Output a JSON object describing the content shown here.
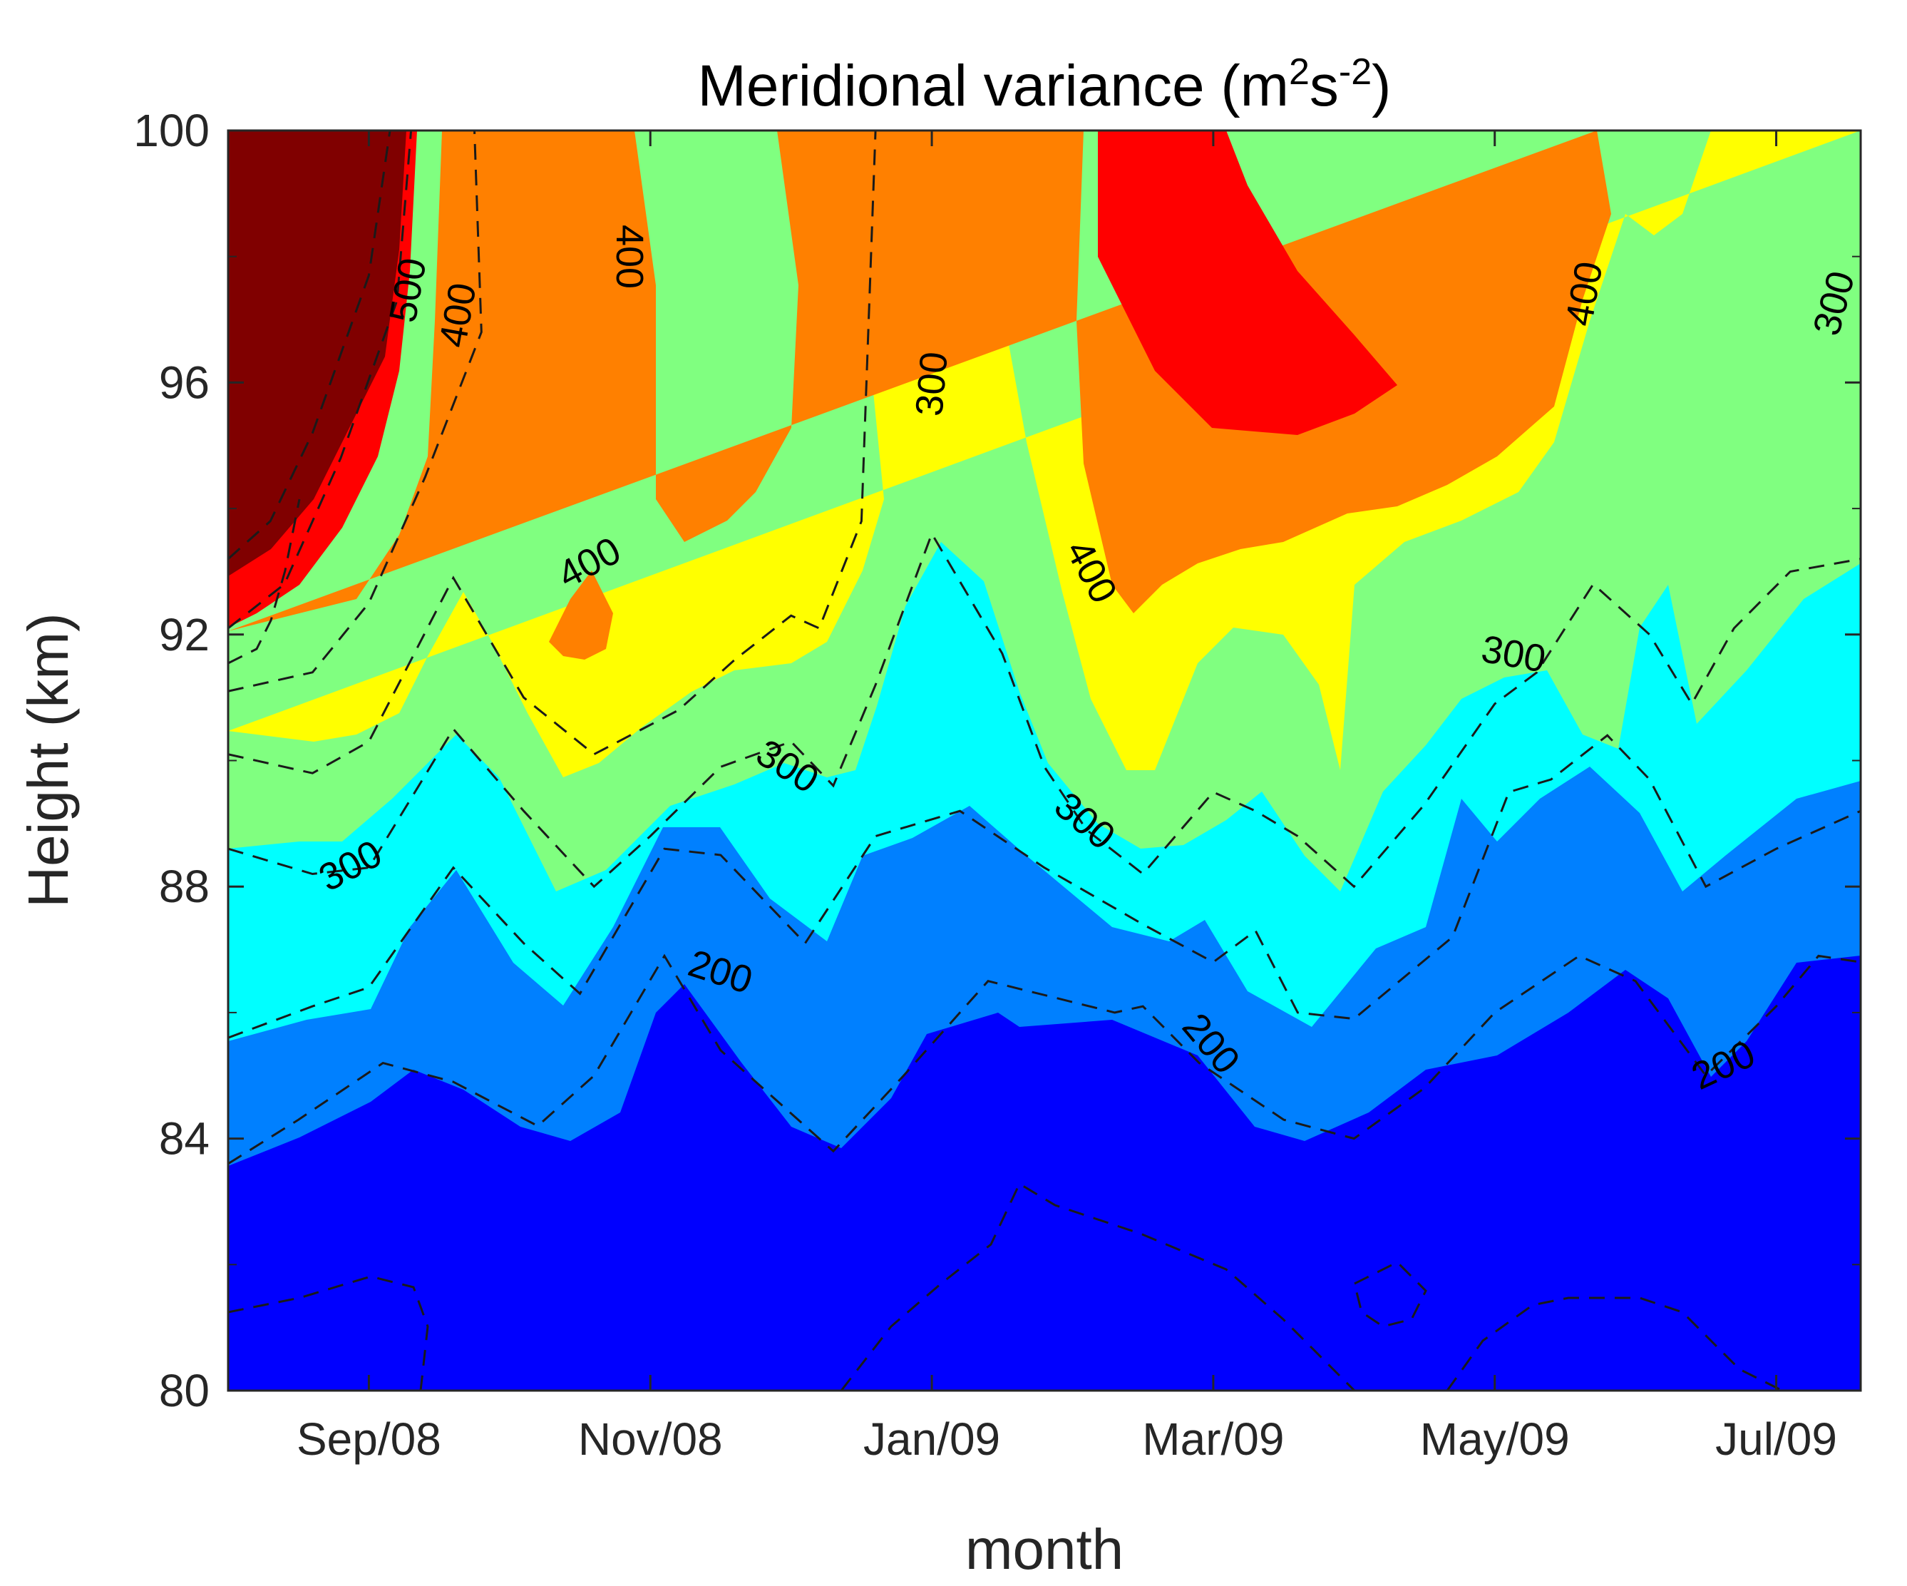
{
  "chart_data": {
    "type": "contourf",
    "title": {
      "prefix": "Meridional variance (m",
      "sup1": "2",
      "mid": "s",
      "sup2": "-2",
      "suffix": ")"
    },
    "xlabel": "month",
    "ylabel": "Height (km)",
    "xlim": [
      0,
      11.6
    ],
    "ylim": [
      80,
      100
    ],
    "yticks": [
      80,
      84,
      88,
      92,
      96,
      100
    ],
    "xticks": [
      {
        "label": "Sep/08",
        "x": 1.0
      },
      {
        "label": "Nov/08",
        "x": 3.0
      },
      {
        "label": "Jan/09",
        "x": 5.0
      },
      {
        "label": "Mar/09",
        "x": 7.0
      },
      {
        "label": "May/09",
        "x": 9.0
      },
      {
        "label": "Jul/09",
        "x": 11.0
      }
    ],
    "levels": [
      {
        "min": 0,
        "max": 200,
        "color": "#0000FF"
      },
      {
        "min": 200,
        "max": 250,
        "color": "#0080FF"
      },
      {
        "min": 250,
        "max": 300,
        "color": "#00FFFF"
      },
      {
        "min": 300,
        "max": 350,
        "color": "#80FF80"
      },
      {
        "min": 350,
        "max": 400,
        "color": "#FFFF00"
      },
      {
        "min": 400,
        "max": 450,
        "color": "#FF8000"
      },
      {
        "min": 450,
        "max": 500,
        "color": "#FF0000"
      },
      {
        "min": 500,
        "max": 600,
        "color": "#800000"
      }
    ],
    "contour_lines": [
      {
        "level": 200,
        "points": [
          [
            0,
            83.6
          ],
          [
            0.5,
            84.3
          ],
          [
            1.1,
            85.2
          ],
          [
            1.6,
            84.9
          ],
          [
            2.2,
            84.2
          ],
          [
            2.6,
            85.0
          ],
          [
            3.1,
            86.9
          ],
          [
            3.5,
            85.4
          ],
          [
            4.3,
            83.8
          ],
          [
            4.8,
            85.0
          ],
          [
            5.4,
            86.5
          ],
          [
            6.3,
            86.0
          ],
          [
            6.5,
            86.1
          ],
          [
            6.9,
            85.2
          ],
          [
            7.5,
            84.3
          ],
          [
            8.0,
            84.0
          ],
          [
            8.5,
            84.8
          ],
          [
            9.0,
            86.0
          ],
          [
            9.6,
            86.9
          ],
          [
            10.0,
            86.5
          ],
          [
            10.5,
            85.0
          ],
          [
            11.0,
            86.1
          ],
          [
            11.3,
            86.9
          ],
          [
            11.6,
            86.8
          ]
        ]
      },
      {
        "level": 250,
        "points": [
          [
            0,
            85.6
          ],
          [
            0.6,
            86.1
          ],
          [
            1.0,
            86.4
          ],
          [
            1.6,
            88.3
          ],
          [
            2.1,
            87.1
          ],
          [
            2.5,
            86.3
          ],
          [
            3.1,
            88.6
          ],
          [
            3.5,
            88.5
          ],
          [
            4.1,
            87.1
          ],
          [
            4.6,
            88.8
          ],
          [
            5.2,
            89.2
          ],
          [
            5.8,
            88.3
          ],
          [
            6.5,
            87.4
          ],
          [
            7.0,
            86.8
          ],
          [
            7.3,
            87.3
          ],
          [
            7.6,
            86.0
          ],
          [
            8.0,
            85.9
          ],
          [
            8.7,
            87.2
          ],
          [
            9.1,
            89.5
          ],
          [
            9.4,
            89.7
          ],
          [
            9.8,
            90.4
          ],
          [
            10.1,
            89.7
          ],
          [
            10.5,
            88.0
          ],
          [
            11.0,
            88.6
          ],
          [
            11.6,
            89.2
          ]
        ]
      },
      {
        "level": 300,
        "points": [
          [
            0,
            88.6
          ],
          [
            0.6,
            88.2
          ],
          [
            1.0,
            88.3
          ],
          [
            1.6,
            90.5
          ],
          [
            2.1,
            89.2
          ],
          [
            2.6,
            88.0
          ],
          [
            3.0,
            88.8
          ],
          [
            3.5,
            89.9
          ],
          [
            4.0,
            90.3
          ],
          [
            4.3,
            89.6
          ],
          [
            4.6,
            91.2
          ],
          [
            5.0,
            93.6
          ],
          [
            5.5,
            91.7
          ],
          [
            5.8,
            89.9
          ],
          [
            6.1,
            88.9
          ],
          [
            6.5,
            88.2
          ],
          [
            7.0,
            89.5
          ],
          [
            7.3,
            89.2
          ],
          [
            7.6,
            88.8
          ],
          [
            8.0,
            88.0
          ],
          [
            8.5,
            89.3
          ],
          [
            9.0,
            90.9
          ],
          [
            9.3,
            91.4
          ],
          [
            9.7,
            92.8
          ],
          [
            10.1,
            92.0
          ],
          [
            10.4,
            90.9
          ],
          [
            10.7,
            92.1
          ],
          [
            11.1,
            93.0
          ],
          [
            11.6,
            93.2
          ]
        ]
      },
      {
        "level": 350,
        "points": [
          [
            0,
            90.1
          ],
          [
            0.6,
            89.8
          ],
          [
            1.0,
            90.3
          ],
          [
            1.6,
            92.9
          ],
          [
            2.1,
            91.0
          ],
          [
            2.6,
            90.1
          ],
          [
            3.2,
            90.8
          ],
          [
            3.6,
            91.6
          ],
          [
            4.0,
            92.3
          ],
          [
            4.2,
            92.1
          ],
          [
            4.5,
            93.8
          ],
          [
            4.6,
            100.0
          ]
        ]
      },
      {
        "level": 400,
        "points": [
          [
            0,
            91.1
          ],
          [
            0.6,
            91.4
          ],
          [
            1.0,
            92.5
          ],
          [
            1.4,
            94.5
          ],
          [
            1.8,
            96.8
          ],
          [
            1.75,
            100.0
          ]
        ]
      },
      {
        "level": 450,
        "points": [
          [
            0,
            92.1
          ],
          [
            0.4,
            92.8
          ],
          [
            0.8,
            94.8
          ],
          [
            1.2,
            97.3
          ],
          [
            1.3,
            100.0
          ]
        ]
      },
      {
        "level": 500,
        "points": [
          [
            0,
            93.2
          ],
          [
            0.3,
            93.8
          ],
          [
            0.6,
            95.2
          ],
          [
            1.0,
            97.7
          ],
          [
            1.15,
            100.0
          ]
        ]
      }
    ],
    "contour_labels": [
      "500",
      "400",
      "400",
      "400",
      "300",
      "300",
      "300",
      "300",
      "300",
      "400",
      "400",
      "300",
      "200",
      "200",
      "200"
    ]
  }
}
